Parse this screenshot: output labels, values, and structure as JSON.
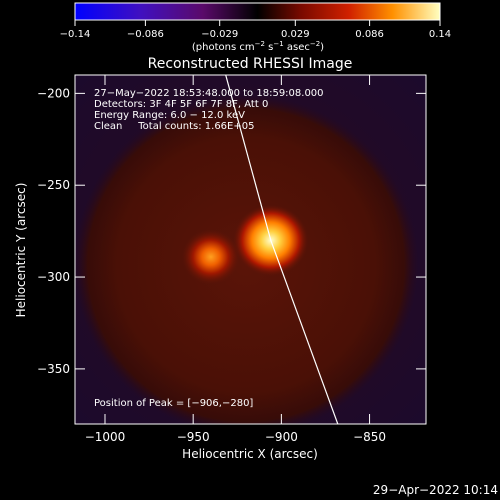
{
  "colorbar": {
    "ticks": [
      "−0.14",
      "−0.086",
      "−0.029",
      "0.029",
      "0.086",
      "0.14"
    ],
    "tick_values": [
      -0.14,
      -0.086,
      -0.029,
      0.029,
      0.086,
      0.14
    ],
    "range": [
      -0.14,
      0.14
    ],
    "label": "(photons cm",
    "label_exp1": "−2",
    "label_mid": " s",
    "label_exp2": "−1",
    "label_end": " asec",
    "label_exp3": "−2",
    "label_close": ")"
  },
  "footer": {
    "timestamp": "29−Apr−2022 10:14"
  },
  "chart_data": {
    "type": "heatmap",
    "title": "Reconstructed RHESSI Image",
    "xlabel": "Heliocentric X (arcsec)",
    "ylabel": "Heliocentric Y (arcsec)",
    "xlim": [
      -1017,
      -818
    ],
    "ylim": [
      -380,
      -190
    ],
    "x_ticks": [
      -1000,
      -950,
      -900,
      -850
    ],
    "x_tick_labels": [
      "−1000",
      "−950",
      "−900",
      "−850"
    ],
    "y_ticks": [
      -200,
      -250,
      -300,
      -350
    ],
    "y_tick_labels": [
      "−200",
      "−250",
      "−300",
      "−350"
    ],
    "annotations": [
      "27−May−2022 18:53:48.000 to 18:59:08.000",
      "Detectors: 3F 4F 5F 6F 7F 8F, Att 0",
      "Energy Range: 6.0 − 12.0 keV",
      "Clean     Total counts: 1.66E+05"
    ],
    "peak_label": "Position of Peak = [−906,−280]",
    "peak": [
      -906,
      -280
    ],
    "sources": [
      {
        "x": -906,
        "y": -280,
        "intensity": 0.14
      },
      {
        "x": -940,
        "y": -289,
        "intensity": 0.09
      }
    ],
    "limb_points": [
      [
        -933,
        -185
      ],
      [
        -906,
        -280
      ],
      [
        -868,
        -380
      ]
    ],
    "colors": {
      "limb": "#ffffff",
      "background": "#000000"
    }
  }
}
